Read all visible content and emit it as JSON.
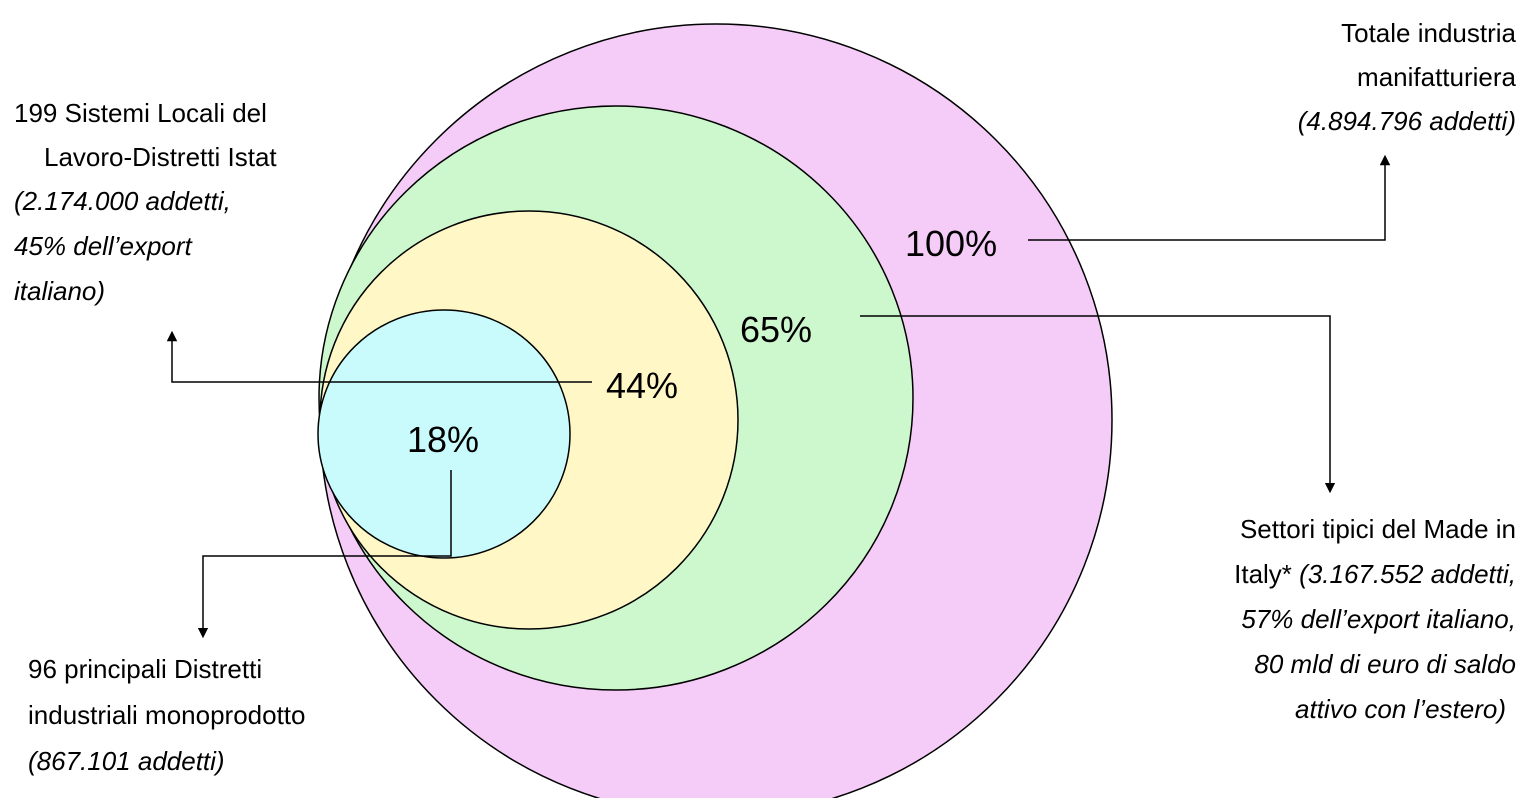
{
  "diagram": {
    "circles": [
      {
        "id": "total",
        "percent_label": "100%",
        "fill": "#f5ccf8"
      },
      {
        "id": "made_in_italy",
        "percent_label": "65%",
        "fill": "#cdf7cd"
      },
      {
        "id": "sll_distretti",
        "percent_label": "44%",
        "fill": "#fff8c6"
      },
      {
        "id": "distretti_monoprodotto",
        "percent_label": "18%",
        "fill": "#c9fbfd"
      }
    ],
    "labels": {
      "total": {
        "line1": "Totale industria",
        "line2": "manifatturiera",
        "line3": "(4.894.796 addetti)"
      },
      "sll": {
        "line1": "199 Sistemi Locali del",
        "line2": "Lavoro-Distretti Istat",
        "line3": "(2.174.000 addetti,",
        "line4": "45% dell’export",
        "line5": "italiano)"
      },
      "made_in_italy": {
        "line1": "Settori tipici del Made in",
        "line2_normal": "Italy* ",
        "line2_italic": "(3.167.552 addetti,",
        "line3": "57% dell’export italiano,",
        "line4": "80 mld di euro di saldo",
        "line5": "attivo con l’estero)"
      },
      "mono": {
        "line1": "96 principali Distretti",
        "line2": "industriali monoprodotto",
        "line3": "(867.101 addetti)"
      }
    }
  }
}
